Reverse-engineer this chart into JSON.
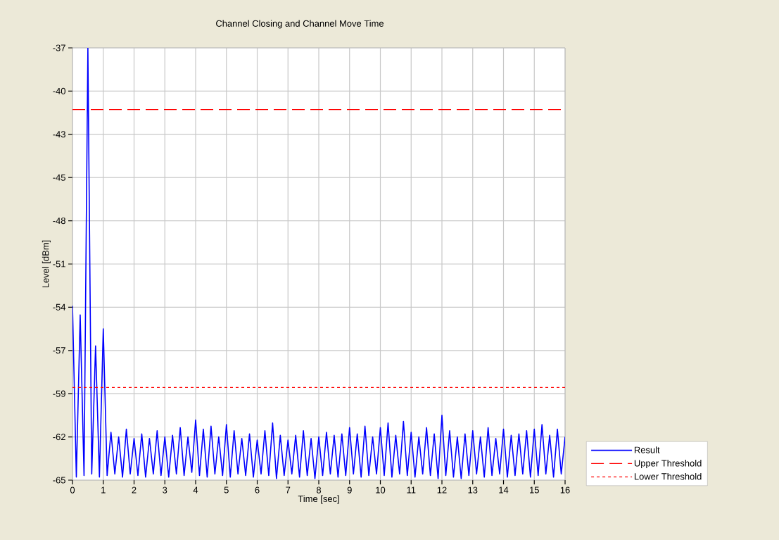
{
  "chart_data": {
    "type": "line",
    "title": "Channel Closing and Channel Move Time",
    "xlabel": "Time [sec]",
    "ylabel": "Level [dBm]",
    "xlim": [
      0,
      16
    ],
    "ylim": [
      -65,
      -37
    ],
    "xticks": [
      0,
      1,
      2,
      3,
      4,
      5,
      6,
      7,
      8,
      9,
      10,
      11,
      12,
      13,
      14,
      15,
      16
    ],
    "yticks": [
      {
        "value": -65,
        "label": "-65"
      },
      {
        "value": -62.2,
        "label": "-62"
      },
      {
        "value": -59.4,
        "label": "-59"
      },
      {
        "value": -56.6,
        "label": "-57"
      },
      {
        "value": -53.8,
        "label": "-54"
      },
      {
        "value": -51,
        "label": "-51"
      },
      {
        "value": -48.2,
        "label": "-48"
      },
      {
        "value": -45.4,
        "label": "-45"
      },
      {
        "value": -42.6,
        "label": "-43"
      },
      {
        "value": -39.8,
        "label": "-40"
      },
      {
        "value": -37,
        "label": "-37"
      }
    ],
    "grid": true,
    "legend": "bottom right",
    "marker": "none",
    "series": [
      {
        "name": "Result",
        "color": "#0000ff",
        "line_style": "solid",
        "x": [
          0,
          0.125,
          0.25,
          0.375,
          0.5,
          0.625,
          0.75,
          0.875,
          1,
          1.125,
          1.25,
          1.375,
          1.5,
          1.625,
          1.75,
          1.875,
          2,
          2.125,
          2.25,
          2.375,
          2.5,
          2.625,
          2.75,
          2.875,
          3,
          3.125,
          3.25,
          3.375,
          3.5,
          3.625,
          3.75,
          3.875,
          4,
          4.125,
          4.25,
          4.375,
          4.5,
          4.625,
          4.75,
          4.875,
          5,
          5.125,
          5.25,
          5.375,
          5.5,
          5.625,
          5.75,
          5.875,
          6,
          6.125,
          6.25,
          6.375,
          6.5,
          6.625,
          6.75,
          6.875,
          7,
          7.125,
          7.25,
          7.375,
          7.5,
          7.625,
          7.75,
          7.875,
          8,
          8.125,
          8.25,
          8.375,
          8.5,
          8.625,
          8.75,
          8.875,
          9,
          9.125,
          9.25,
          9.375,
          9.5,
          9.625,
          9.75,
          9.875,
          10,
          10.125,
          10.25,
          10.375,
          10.5,
          10.625,
          10.75,
          10.875,
          11,
          11.125,
          11.25,
          11.375,
          11.5,
          11.625,
          11.75,
          11.875,
          12,
          12.125,
          12.25,
          12.375,
          12.5,
          12.625,
          12.75,
          12.875,
          13,
          13.125,
          13.25,
          13.375,
          13.5,
          13.625,
          13.75,
          13.875,
          14,
          14.125,
          14.25,
          14.375,
          14.5,
          14.625,
          14.75,
          14.875,
          15,
          15.125,
          15.25,
          15.375,
          15.5,
          15.625,
          15.75,
          15.875,
          16
        ],
        "values": [
          -53.7,
          -64.8,
          -54.3,
          -64.7,
          -37,
          -64.6,
          -56.3,
          -64.8,
          -55.2,
          -64.7,
          -61.9,
          -64.6,
          -62.2,
          -64.8,
          -61.7,
          -64.6,
          -62.3,
          -64.7,
          -62.0,
          -64.8,
          -62.3,
          -64.6,
          -61.8,
          -64.7,
          -62.2,
          -64.8,
          -62.1,
          -64.6,
          -61.6,
          -64.7,
          -62.2,
          -64.5,
          -61.1,
          -64.7,
          -61.7,
          -64.8,
          -61.5,
          -64.6,
          -62.2,
          -64.7,
          -61.4,
          -64.8,
          -61.8,
          -64.6,
          -62.3,
          -64.7,
          -62.0,
          -64.8,
          -62.4,
          -64.6,
          -61.8,
          -64.7,
          -61.3,
          -64.9,
          -62.1,
          -64.7,
          -62.4,
          -64.6,
          -62.1,
          -64.8,
          -61.8,
          -64.7,
          -62.3,
          -64.9,
          -62.2,
          -64.7,
          -61.9,
          -64.6,
          -62.1,
          -64.8,
          -62.0,
          -64.7,
          -61.6,
          -64.6,
          -62.0,
          -64.8,
          -61.5,
          -64.7,
          -62.2,
          -64.6,
          -61.6,
          -64.7,
          -61.3,
          -64.8,
          -62.1,
          -64.6,
          -61.2,
          -64.7,
          -61.9,
          -64.8,
          -62.2,
          -64.6,
          -61.6,
          -64.7,
          -62.0,
          -64.9,
          -60.8,
          -64.7,
          -61.8,
          -64.8,
          -62.2,
          -64.9,
          -62.0,
          -64.7,
          -61.8,
          -64.6,
          -62.2,
          -64.8,
          -61.6,
          -64.7,
          -62.3,
          -64.6,
          -61.7,
          -64.8,
          -62.1,
          -64.7,
          -62.0,
          -64.6,
          -61.8,
          -64.8,
          -61.7,
          -64.7,
          -61.4,
          -64.6,
          -62.1,
          -64.8,
          -61.7,
          -64.6,
          -62.2
        ]
      }
    ],
    "ref_lines": [
      {
        "axis": "y",
        "value": -41.0,
        "label": "Upper Threshold",
        "color": "#ff0000",
        "line_style": "dashed"
      },
      {
        "axis": "y",
        "value": -59.0,
        "label": "Lower Threshold",
        "color": "#ff0000",
        "line_style": "dotted"
      }
    ]
  }
}
